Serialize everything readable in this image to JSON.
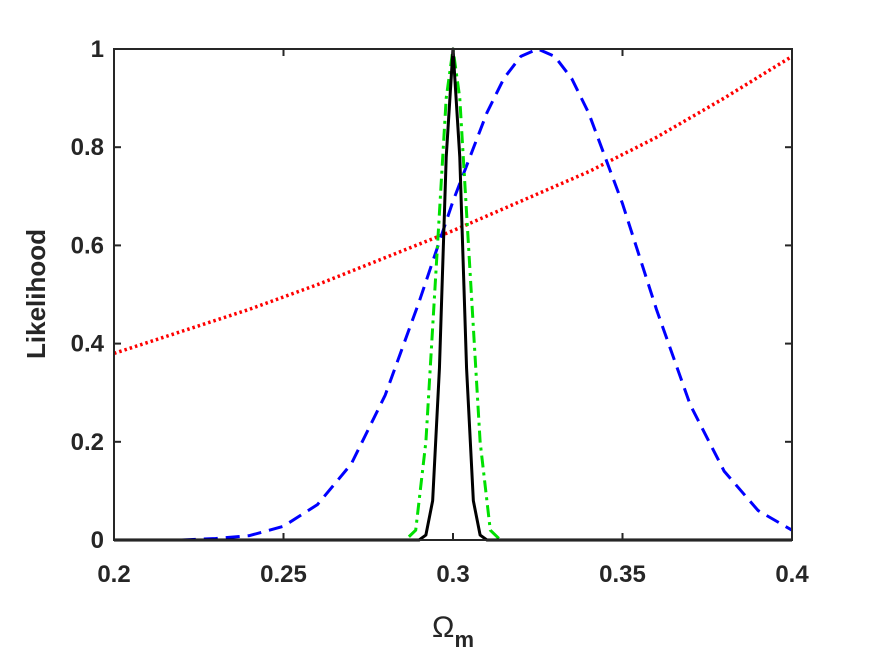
{
  "chart_data": {
    "type": "line",
    "title": "",
    "xlabel": "Ω",
    "xlabel_subscript": "m",
    "ylabel": "Likelihood",
    "xlim": [
      0.2,
      0.4
    ],
    "ylim": [
      0,
      1
    ],
    "xticks": [
      0.2,
      0.25,
      0.3,
      0.35,
      0.4
    ],
    "xtick_labels": [
      "0.2",
      "0.25",
      "0.3",
      "0.35",
      "0.4"
    ],
    "yticks": [
      0,
      0.2,
      0.4,
      0.6,
      0.8,
      1
    ],
    "ytick_labels": [
      "0",
      "0.2",
      "0.4",
      "0.6",
      "0.8",
      "1"
    ],
    "grid": false,
    "series": [
      {
        "color": "#ff0000",
        "style": "dotted",
        "x": [
          0.2,
          0.22,
          0.24,
          0.26,
          0.28,
          0.3,
          0.32,
          0.34,
          0.36,
          0.38,
          0.4
        ],
        "y": [
          0.38,
          0.425,
          0.47,
          0.52,
          0.575,
          0.63,
          0.69,
          0.75,
          0.82,
          0.9,
          0.985
        ]
      },
      {
        "color": "#0000ff",
        "style": "dashed",
        "x": [
          0.22,
          0.23,
          0.24,
          0.25,
          0.26,
          0.27,
          0.28,
          0.29,
          0.3,
          0.31,
          0.315,
          0.32,
          0.325,
          0.33,
          0.335,
          0.34,
          0.35,
          0.36,
          0.37,
          0.38,
          0.39,
          0.4
        ],
        "y": [
          0.0,
          0.003,
          0.009,
          0.028,
          0.072,
          0.155,
          0.295,
          0.485,
          0.69,
          0.87,
          0.94,
          0.985,
          1.0,
          0.985,
          0.94,
          0.87,
          0.685,
          0.47,
          0.275,
          0.14,
          0.06,
          0.02
        ]
      },
      {
        "color": "#00e000",
        "style": "dashdot",
        "x": [
          0.28,
          0.286,
          0.289,
          0.292,
          0.295,
          0.298,
          0.3,
          0.302,
          0.305,
          0.308,
          0.311,
          0.314,
          0.32
        ],
        "y": [
          0.0,
          0.0,
          0.02,
          0.2,
          0.55,
          0.9,
          1.0,
          0.9,
          0.55,
          0.2,
          0.02,
          0.0,
          0.0
        ]
      },
      {
        "color": "#000000",
        "style": "solid",
        "x": [
          0.2,
          0.29,
          0.292,
          0.294,
          0.296,
          0.298,
          0.3,
          0.302,
          0.304,
          0.306,
          0.308,
          0.31,
          0.4
        ],
        "y": [
          0.0,
          0.0,
          0.01,
          0.08,
          0.35,
          0.78,
          1.0,
          0.78,
          0.35,
          0.08,
          0.01,
          0.0,
          0.0
        ]
      }
    ]
  }
}
